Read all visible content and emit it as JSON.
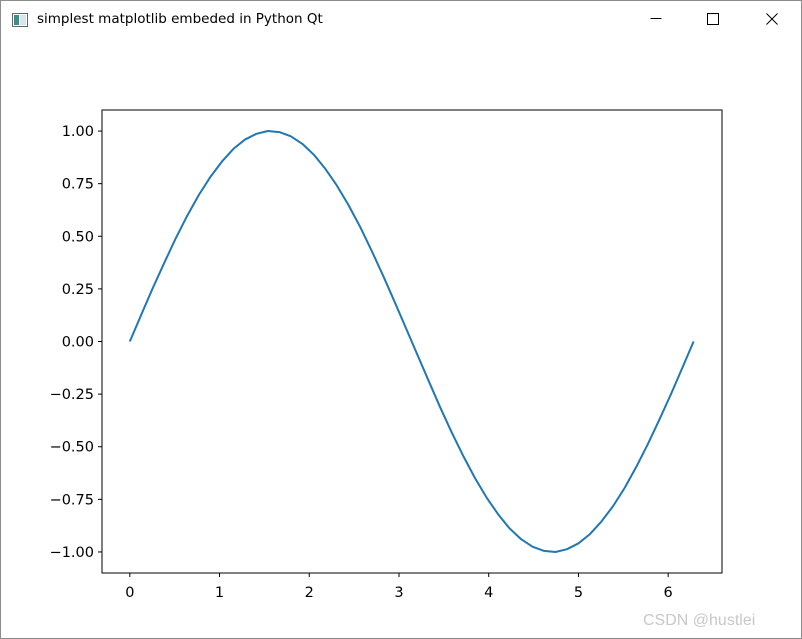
{
  "window": {
    "title": "simplest matplotlib embeded in Python Qt",
    "icon": "qt-window-icon",
    "controls": {
      "minimize_icon": "minimize-icon",
      "maximize_icon": "maximize-icon",
      "close_icon": "close-icon"
    }
  },
  "chart_data": {
    "type": "line",
    "title": "",
    "xlabel": "",
    "ylabel": "",
    "xlim": [
      -0.31,
      6.6
    ],
    "ylim": [
      -1.1,
      1.1
    ],
    "xticks": [
      0,
      1,
      2,
      3,
      4,
      5,
      6
    ],
    "xtick_labels": [
      "0",
      "1",
      "2",
      "3",
      "4",
      "5",
      "6"
    ],
    "yticks": [
      1.0,
      0.75,
      0.5,
      0.25,
      0.0,
      -0.25,
      -0.5,
      -0.75,
      -1.0
    ],
    "ytick_labels": [
      "1.00",
      "0.75",
      "0.50",
      "0.25",
      "0.00",
      "−0.25",
      "−0.50",
      "−0.75",
      "−1.00"
    ],
    "grid": false,
    "legend": "none",
    "series": [
      {
        "color": "#1f77b4",
        "x": [
          0,
          0.128,
          0.256,
          0.385,
          0.513,
          0.641,
          0.769,
          0.898,
          1.026,
          1.154,
          1.282,
          1.411,
          1.539,
          1.667,
          1.795,
          1.923,
          2.052,
          2.18,
          2.308,
          2.436,
          2.565,
          2.693,
          2.821,
          2.949,
          3.077,
          3.206,
          3.334,
          3.462,
          3.59,
          3.719,
          3.847,
          3.975,
          4.103,
          4.231,
          4.36,
          4.488,
          4.616,
          4.744,
          4.873,
          5.001,
          5.129,
          5.257,
          5.386,
          5.514,
          5.642,
          5.77,
          5.898,
          6.027,
          6.155,
          6.283
        ],
        "y": [
          0,
          0.128,
          0.254,
          0.375,
          0.491,
          0.598,
          0.696,
          0.782,
          0.855,
          0.915,
          0.959,
          0.987,
          1.0,
          0.995,
          0.975,
          0.939,
          0.887,
          0.82,
          0.741,
          0.649,
          0.546,
          0.434,
          0.315,
          0.191,
          0.064,
          -0.064,
          -0.191,
          -0.315,
          -0.434,
          -0.546,
          -0.649,
          -0.741,
          -0.82,
          -0.887,
          -0.939,
          -0.975,
          -0.995,
          -1.0,
          -0.987,
          -0.959,
          -0.915,
          -0.855,
          -0.782,
          -0.696,
          -0.598,
          -0.491,
          -0.375,
          -0.254,
          -0.128,
          0
        ]
      }
    ]
  },
  "watermark": {
    "text": "CSDN @hustlei"
  }
}
